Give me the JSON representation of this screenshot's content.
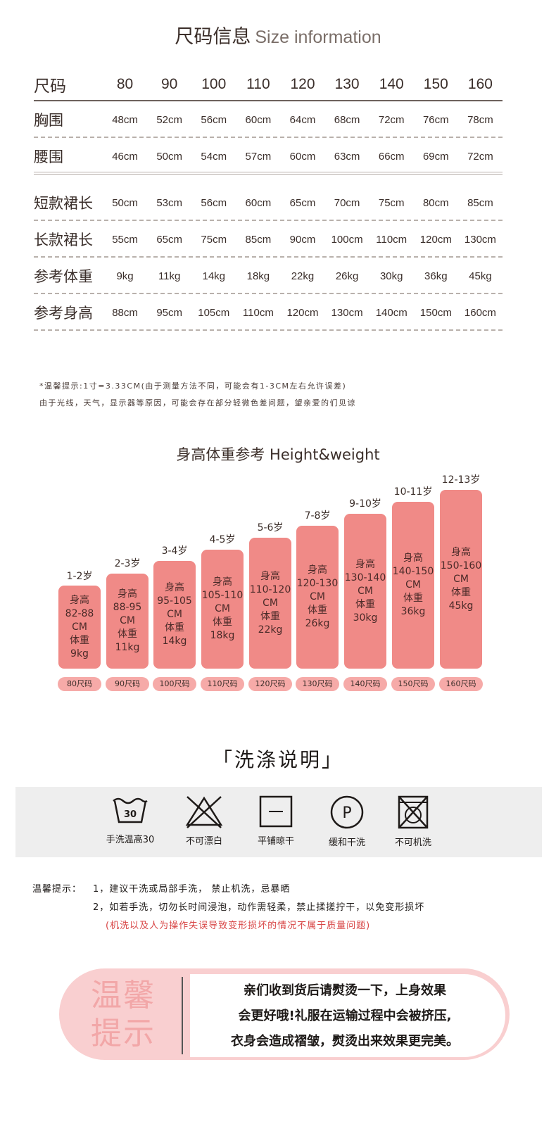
{
  "size_section": {
    "title_cn": "尺码信息",
    "title_en": "Size information",
    "header": {
      "label": "尺码",
      "values": [
        "80",
        "90",
        "100",
        "110",
        "120",
        "130",
        "140",
        "150",
        "160"
      ]
    },
    "rows": [
      {
        "label": "胸围",
        "values": [
          "48cm",
          "52cm",
          "56cm",
          "60cm",
          "64cm",
          "68cm",
          "72cm",
          "76cm",
          "78cm"
        ]
      },
      {
        "label": "腰围",
        "values": [
          "46cm",
          "50cm",
          "54cm",
          "57cm",
          "60cm",
          "63cm",
          "66cm",
          "69cm",
          "72cm"
        ]
      },
      {
        "label": "短款裙长",
        "values": [
          "50cm",
          "53cm",
          "56cm",
          "60cm",
          "65cm",
          "70cm",
          "75cm",
          "80cm",
          "85cm"
        ]
      },
      {
        "label": "长款裙长",
        "values": [
          "55cm",
          "65cm",
          "75cm",
          "85cm",
          "90cm",
          "100cm",
          "110cm",
          "120cm",
          "130cm"
        ]
      },
      {
        "label": "参考体重",
        "values": [
          "9kg",
          "11kg",
          "14kg",
          "18kg",
          "22kg",
          "26kg",
          "30kg",
          "36kg",
          "45kg"
        ]
      },
      {
        "label": "参考身高",
        "values": [
          "88cm",
          "95cm",
          "105cm",
          "110cm",
          "120cm",
          "130cm",
          "140cm",
          "150cm",
          "160cm"
        ]
      }
    ],
    "note1": "*温馨提示:1寸=3.33CM(由于测量方法不同，可能会有1-3CM左右允许误差)",
    "note2": "由于光线，天气，显示器等原因，可能会存在部分轻微色差问题，望亲爱的们见谅"
  },
  "height_weight": {
    "title": "身高体重参考 Height&weight",
    "bars": [
      {
        "age": "1-2岁",
        "l1": "身高",
        "l2": "82-88",
        "l3": "CM",
        "l4": "体重",
        "l5": "9kg",
        "size": "80尺码"
      },
      {
        "age": "2-3岁",
        "l1": "身高",
        "l2": "88-95",
        "l3": "CM",
        "l4": "体重",
        "l5": "11kg",
        "size": "90尺码"
      },
      {
        "age": "3-4岁",
        "l1": "身高",
        "l2": "95-105",
        "l3": "CM",
        "l4": "体重",
        "l5": "14kg",
        "size": "100尺码"
      },
      {
        "age": "4-5岁",
        "l1": "身高",
        "l2": "105-110",
        "l3": "CM",
        "l4": "体重",
        "l5": "18kg",
        "size": "110尺码"
      },
      {
        "age": "5-6岁",
        "l1": "身高",
        "l2": "110-120",
        "l3": "CM",
        "l4": "体重",
        "l5": "22kg",
        "size": "120尺码"
      },
      {
        "age": "7-8岁",
        "l1": "身高",
        "l2": "120-130",
        "l3": "CM",
        "l4": "体重",
        "l5": "26kg",
        "size": "130尺码"
      },
      {
        "age": "9-10岁",
        "l1": "身高",
        "l2": "130-140",
        "l3": "CM",
        "l4": "体重",
        "l5": "30kg",
        "size": "140尺码"
      },
      {
        "age": "10-11岁",
        "l1": "身高",
        "l2": "140-150",
        "l3": "CM",
        "l4": "体重",
        "l5": "36kg",
        "size": "150尺码"
      },
      {
        "age": "12-13岁",
        "l1": "身高",
        "l2": "150-160",
        "l3": "CM",
        "l4": "体重",
        "l5": "45kg",
        "size": "160尺码"
      }
    ]
  },
  "washing": {
    "title": "「洗涤说明」",
    "icons": [
      {
        "icon": "hand-wash-30-icon",
        "label": "手洗温高30",
        "num": "30"
      },
      {
        "icon": "no-bleach-icon",
        "label": "不可漂白"
      },
      {
        "icon": "dry-flat-icon",
        "label": "平铺晾干"
      },
      {
        "icon": "dry-clean-p-icon",
        "label": "缓和干洗",
        "letter": "P"
      },
      {
        "icon": "no-machine-wash-icon",
        "label": "不可机洗"
      }
    ],
    "tip_label": "温馨提示：",
    "tip1": "1，建议干洗或局部手洗， 禁止机洗，忌暴晒",
    "tip2": "2，如若手洗，切勿长时间浸泡，动作需轻柔，禁止揉搓拧干，以免变形损坏",
    "tip3": "(机洗以及人为操作失误导致变形损坏的情况不属于质量问题)"
  },
  "warm_tip": {
    "title_line1": "温馨",
    "title_line2": "提示",
    "line1": "亲们收到货后请熨烫一下，上身效果",
    "line2": "会更好哦!礼服在运输过程中会被挤压,",
    "line3": "衣身会造成褶皱，熨烫出来效果更完美。"
  }
}
